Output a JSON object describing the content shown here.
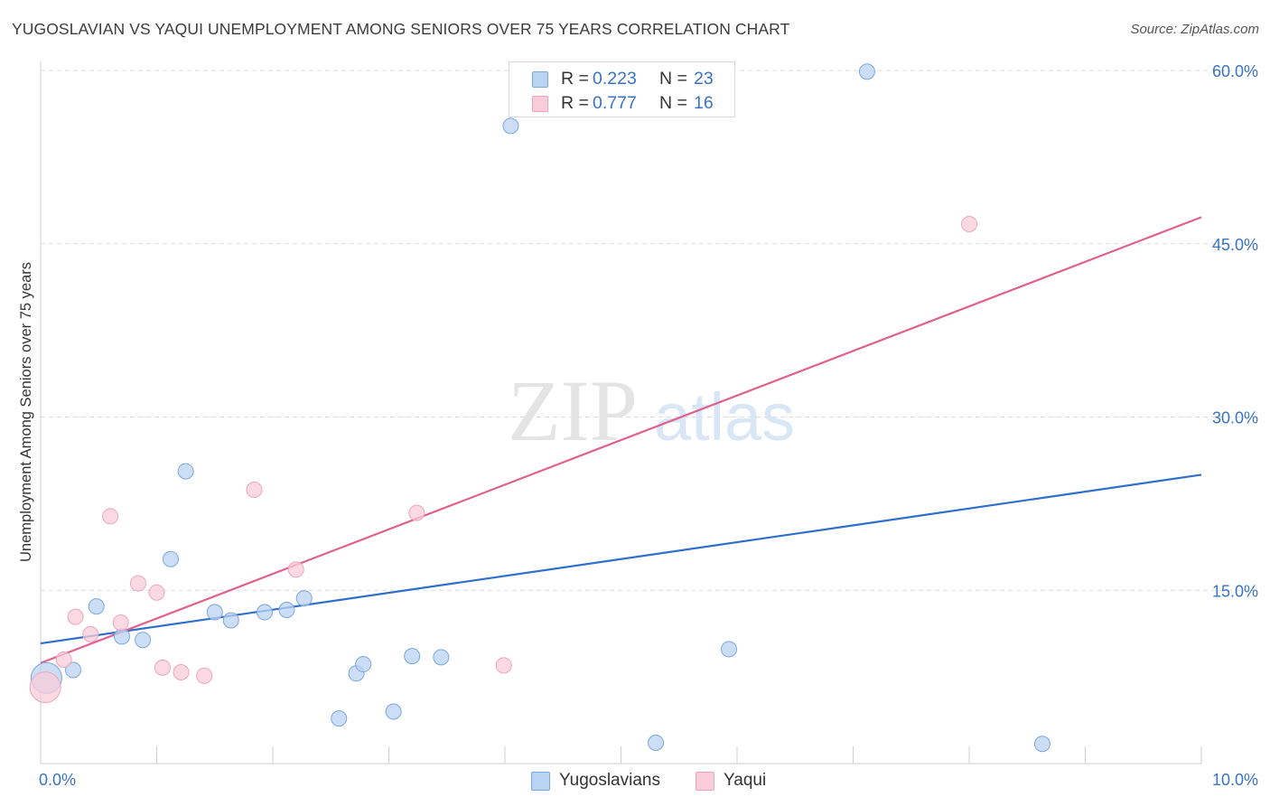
{
  "header": {
    "title": "YUGOSLAVIAN VS YAQUI UNEMPLOYMENT AMONG SENIORS OVER 75 YEARS CORRELATION CHART",
    "source": "Source: ZipAtlas.com"
  },
  "watermark": {
    "zip": "ZIP",
    "atlas": "atlas"
  },
  "legend_top": {
    "rows": [
      {
        "r_key": "R = ",
        "r_value": "0.223",
        "n_key": "N = ",
        "n_value": "23"
      },
      {
        "r_key": "R = ",
        "r_value": "0.777",
        "n_key": "N = ",
        "n_value": "16"
      }
    ]
  },
  "legend_bottom": {
    "items": [
      "Yugoslavians",
      "Yaqui"
    ]
  },
  "colors": {
    "blue_fill": "#b9d3f3",
    "blue_stroke": "#7aa7e0",
    "blue_line": "#2f6fcc",
    "pink_fill": "#f9ccd9",
    "pink_stroke": "#eda5bd",
    "pink_line": "#e0608e",
    "grid": "#dcdcdc",
    "tick_label": "#3a73c6"
  },
  "chart_data": {
    "type": "scatter",
    "title": "YUGOSLAVIAN VS YAQUI UNEMPLOYMENT AMONG SENIORS OVER 75 YEARS CORRELATION CHART",
    "xlabel": "",
    "ylabel": "Unemployment Among Seniors over 75 years",
    "xlim": [
      0,
      10
    ],
    "ylim": [
      0,
      60
    ],
    "x_tick_labels": [
      {
        "value": 0,
        "label": "0.0%"
      },
      {
        "value": 10,
        "label": "10.0%"
      }
    ],
    "x_minor_ticks": [
      0,
      1,
      2,
      3,
      4,
      5,
      6,
      7,
      8,
      9,
      10
    ],
    "y_ticks": [
      {
        "value": 15,
        "label": "15.0%"
      },
      {
        "value": 30,
        "label": "30.0%"
      },
      {
        "value": 45,
        "label": "45.0%"
      },
      {
        "value": 60,
        "label": "60.0%"
      }
    ],
    "series": [
      {
        "name": "Yugoslavians",
        "color": "#b9d3f3",
        "points": [
          {
            "x": 0.05,
            "y": 7.4,
            "big": true
          },
          {
            "x": 0.28,
            "y": 8.1
          },
          {
            "x": 0.48,
            "y": 13.6
          },
          {
            "x": 0.7,
            "y": 11.0
          },
          {
            "x": 0.88,
            "y": 10.7
          },
          {
            "x": 1.12,
            "y": 17.7
          },
          {
            "x": 1.25,
            "y": 25.3
          },
          {
            "x": 1.5,
            "y": 13.1
          },
          {
            "x": 1.64,
            "y": 12.4
          },
          {
            "x": 1.93,
            "y": 13.1
          },
          {
            "x": 2.12,
            "y": 13.3
          },
          {
            "x": 2.27,
            "y": 14.3
          },
          {
            "x": 2.57,
            "y": 3.9
          },
          {
            "x": 2.72,
            "y": 7.8
          },
          {
            "x": 2.78,
            "y": 8.6
          },
          {
            "x": 3.04,
            "y": 4.5
          },
          {
            "x": 3.2,
            "y": 9.3
          },
          {
            "x": 3.45,
            "y": 9.2
          },
          {
            "x": 4.05,
            "y": 55.2
          },
          {
            "x": 5.3,
            "y": 1.8
          },
          {
            "x": 5.93,
            "y": 9.9
          },
          {
            "x": 7.12,
            "y": 59.9
          },
          {
            "x": 8.63,
            "y": 1.7
          }
        ],
        "trend": {
          "x0": 0,
          "y0": 10.4,
          "x1": 10,
          "y1": 25.0
        }
      },
      {
        "name": "Yaqui",
        "color": "#f9ccd9",
        "points": [
          {
            "x": 0.04,
            "y": 6.6,
            "big": true
          },
          {
            "x": 0.2,
            "y": 9.0
          },
          {
            "x": 0.3,
            "y": 12.7
          },
          {
            "x": 0.43,
            "y": 11.2
          },
          {
            "x": 0.6,
            "y": 21.4
          },
          {
            "x": 0.69,
            "y": 12.2
          },
          {
            "x": 0.84,
            "y": 15.6
          },
          {
            "x": 1.0,
            "y": 14.8
          },
          {
            "x": 1.05,
            "y": 8.3
          },
          {
            "x": 1.21,
            "y": 7.9
          },
          {
            "x": 1.41,
            "y": 7.6
          },
          {
            "x": 1.84,
            "y": 23.7
          },
          {
            "x": 2.2,
            "y": 16.8
          },
          {
            "x": 3.24,
            "y": 21.7
          },
          {
            "x": 3.99,
            "y": 8.5
          },
          {
            "x": 8.0,
            "y": 46.7
          }
        ],
        "trend": {
          "x0": 0,
          "y0": 8.7,
          "x1": 10,
          "y1": 47.3
        }
      }
    ]
  }
}
